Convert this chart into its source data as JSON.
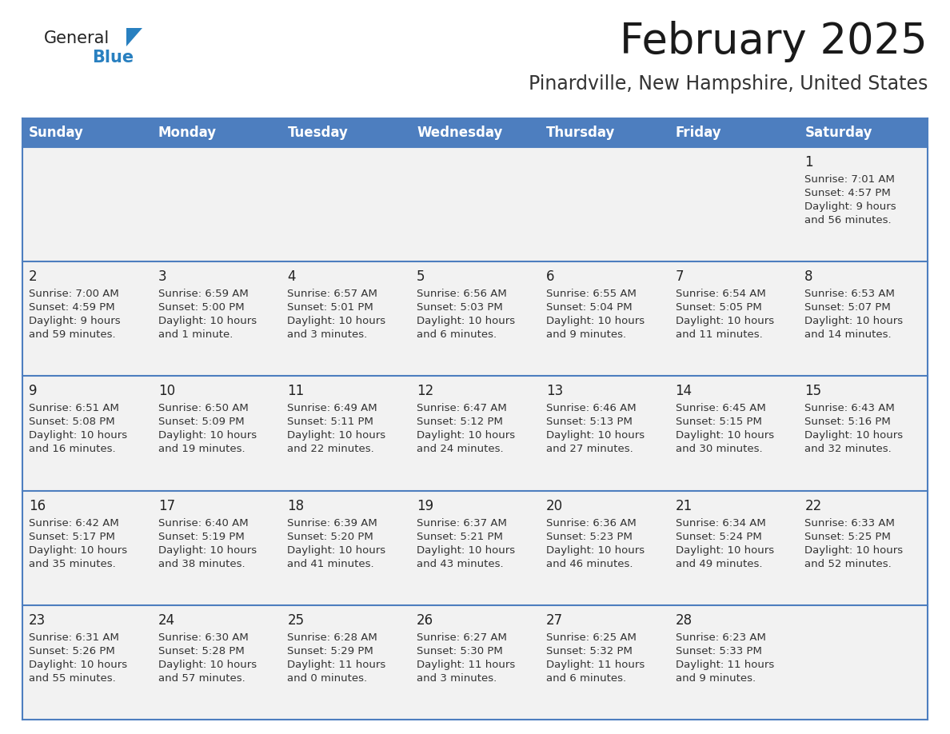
{
  "title": "February 2025",
  "subtitle": "Pinardville, New Hampshire, United States",
  "days_of_week": [
    "Sunday",
    "Monday",
    "Tuesday",
    "Wednesday",
    "Thursday",
    "Friday",
    "Saturday"
  ],
  "header_bg": "#4d7ebf",
  "header_text": "#FFFFFF",
  "cell_bg": "#F2F2F2",
  "cell_text_color": "#333333",
  "day_num_color": "#222222",
  "border_color": "#4d7ebf",
  "title_color": "#1a1a1a",
  "subtitle_color": "#333333",
  "calendar_data": [
    [
      null,
      null,
      null,
      null,
      null,
      null,
      {
        "day": 1,
        "sunrise": "7:01 AM",
        "sunset": "4:57 PM",
        "daylight": "9 hours and 56 minutes."
      }
    ],
    [
      {
        "day": 2,
        "sunrise": "7:00 AM",
        "sunset": "4:59 PM",
        "daylight": "9 hours and 59 minutes."
      },
      {
        "day": 3,
        "sunrise": "6:59 AM",
        "sunset": "5:00 PM",
        "daylight": "10 hours and 1 minute."
      },
      {
        "day": 4,
        "sunrise": "6:57 AM",
        "sunset": "5:01 PM",
        "daylight": "10 hours and 3 minutes."
      },
      {
        "day": 5,
        "sunrise": "6:56 AM",
        "sunset": "5:03 PM",
        "daylight": "10 hours and 6 minutes."
      },
      {
        "day": 6,
        "sunrise": "6:55 AM",
        "sunset": "5:04 PM",
        "daylight": "10 hours and 9 minutes."
      },
      {
        "day": 7,
        "sunrise": "6:54 AM",
        "sunset": "5:05 PM",
        "daylight": "10 hours and 11 minutes."
      },
      {
        "day": 8,
        "sunrise": "6:53 AM",
        "sunset": "5:07 PM",
        "daylight": "10 hours and 14 minutes."
      }
    ],
    [
      {
        "day": 9,
        "sunrise": "6:51 AM",
        "sunset": "5:08 PM",
        "daylight": "10 hours and 16 minutes."
      },
      {
        "day": 10,
        "sunrise": "6:50 AM",
        "sunset": "5:09 PM",
        "daylight": "10 hours and 19 minutes."
      },
      {
        "day": 11,
        "sunrise": "6:49 AM",
        "sunset": "5:11 PM",
        "daylight": "10 hours and 22 minutes."
      },
      {
        "day": 12,
        "sunrise": "6:47 AM",
        "sunset": "5:12 PM",
        "daylight": "10 hours and 24 minutes."
      },
      {
        "day": 13,
        "sunrise": "6:46 AM",
        "sunset": "5:13 PM",
        "daylight": "10 hours and 27 minutes."
      },
      {
        "day": 14,
        "sunrise": "6:45 AM",
        "sunset": "5:15 PM",
        "daylight": "10 hours and 30 minutes."
      },
      {
        "day": 15,
        "sunrise": "6:43 AM",
        "sunset": "5:16 PM",
        "daylight": "10 hours and 32 minutes."
      }
    ],
    [
      {
        "day": 16,
        "sunrise": "6:42 AM",
        "sunset": "5:17 PM",
        "daylight": "10 hours and 35 minutes."
      },
      {
        "day": 17,
        "sunrise": "6:40 AM",
        "sunset": "5:19 PM",
        "daylight": "10 hours and 38 minutes."
      },
      {
        "day": 18,
        "sunrise": "6:39 AM",
        "sunset": "5:20 PM",
        "daylight": "10 hours and 41 minutes."
      },
      {
        "day": 19,
        "sunrise": "6:37 AM",
        "sunset": "5:21 PM",
        "daylight": "10 hours and 43 minutes."
      },
      {
        "day": 20,
        "sunrise": "6:36 AM",
        "sunset": "5:23 PM",
        "daylight": "10 hours and 46 minutes."
      },
      {
        "day": 21,
        "sunrise": "6:34 AM",
        "sunset": "5:24 PM",
        "daylight": "10 hours and 49 minutes."
      },
      {
        "day": 22,
        "sunrise": "6:33 AM",
        "sunset": "5:25 PM",
        "daylight": "10 hours and 52 minutes."
      }
    ],
    [
      {
        "day": 23,
        "sunrise": "6:31 AM",
        "sunset": "5:26 PM",
        "daylight": "10 hours and 55 minutes."
      },
      {
        "day": 24,
        "sunrise": "6:30 AM",
        "sunset": "5:28 PM",
        "daylight": "10 hours and 57 minutes."
      },
      {
        "day": 25,
        "sunrise": "6:28 AM",
        "sunset": "5:29 PM",
        "daylight": "11 hours and 0 minutes."
      },
      {
        "day": 26,
        "sunrise": "6:27 AM",
        "sunset": "5:30 PM",
        "daylight": "11 hours and 3 minutes."
      },
      {
        "day": 27,
        "sunrise": "6:25 AM",
        "sunset": "5:32 PM",
        "daylight": "11 hours and 6 minutes."
      },
      {
        "day": 28,
        "sunrise": "6:23 AM",
        "sunset": "5:33 PM",
        "daylight": "11 hours and 9 minutes."
      },
      null
    ]
  ],
  "num_rows": 5,
  "num_cols": 7,
  "logo_general_color": "#222222",
  "logo_blue_color": "#2980C0",
  "logo_triangle_color": "#2980C0"
}
